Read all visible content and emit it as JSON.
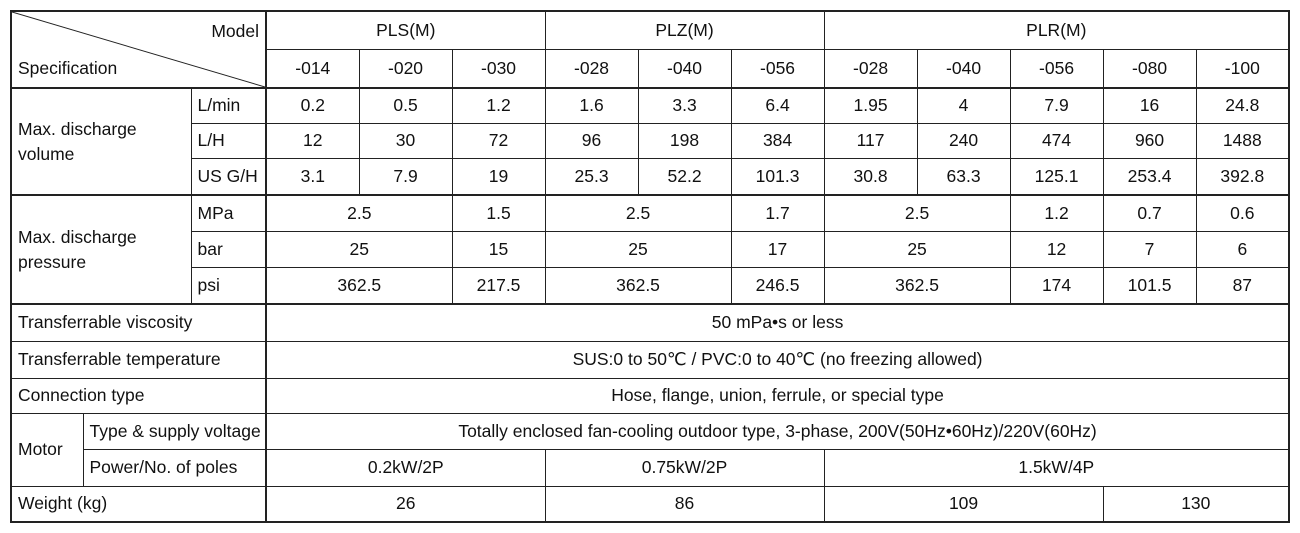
{
  "header": {
    "model_label": "Model",
    "spec_label": "Specification",
    "models": [
      {
        "name": "PLS(M)",
        "variants": [
          "-014",
          "-020",
          "-030"
        ]
      },
      {
        "name": "PLZ(M)",
        "variants": [
          "-028",
          "-040",
          "-056"
        ]
      },
      {
        "name": "PLR(M)",
        "variants": [
          "-028",
          "-040",
          "-056",
          "-080",
          "-100"
        ]
      }
    ]
  },
  "discharge_volume": {
    "label": "Max. discharge volume",
    "units": [
      {
        "unit": "L/min",
        "values": [
          "0.2",
          "0.5",
          "1.2",
          "1.6",
          "3.3",
          "6.4",
          "1.95",
          "4",
          "7.9",
          "16",
          "24.8"
        ]
      },
      {
        "unit": "L/H",
        "values": [
          "12",
          "30",
          "72",
          "96",
          "198",
          "384",
          "117",
          "240",
          "474",
          "960",
          "1488"
        ]
      },
      {
        "unit": "US G/H",
        "values": [
          "3.1",
          "7.9",
          "19",
          "25.3",
          "52.2",
          "101.3",
          "30.8",
          "63.3",
          "125.1",
          "253.4",
          "392.8"
        ]
      }
    ]
  },
  "discharge_pressure": {
    "label": "Max. discharge pressure",
    "units": [
      {
        "unit": "MPa",
        "values": [
          "2.5",
          "1.5",
          "2.5",
          "1.7",
          "2.5",
          "1.2",
          "0.7",
          "0.6"
        ]
      },
      {
        "unit": "bar",
        "values": [
          "25",
          "15",
          "25",
          "17",
          "25",
          "12",
          "7",
          "6"
        ]
      },
      {
        "unit": "psi",
        "values": [
          "362.5",
          "217.5",
          "362.5",
          "246.5",
          "362.5",
          "174",
          "101.5",
          "87"
        ]
      }
    ]
  },
  "viscosity": {
    "label": "Transferrable viscosity",
    "value": "50 mPa•s or less"
  },
  "temperature": {
    "label": "Transferrable temperature",
    "value": "SUS:0 to 50℃ / PVC:0 to 40℃ (no freezing allowed)"
  },
  "connection": {
    "label": "Connection type",
    "value": "Hose, flange, union, ferrule, or special type"
  },
  "motor": {
    "label": "Motor",
    "type": {
      "label": "Type & supply voltage",
      "value": "Totally enclosed fan-cooling outdoor type, 3-phase, 200V(50Hz•60Hz)/220V(60Hz)"
    },
    "power": {
      "label": "Power/No. of poles",
      "values": [
        "0.2kW/2P",
        "0.75kW/2P",
        "1.5kW/4P"
      ]
    }
  },
  "weight": {
    "label": "Weight (kg)",
    "values": [
      "26",
      "86",
      "109",
      "130"
    ]
  }
}
